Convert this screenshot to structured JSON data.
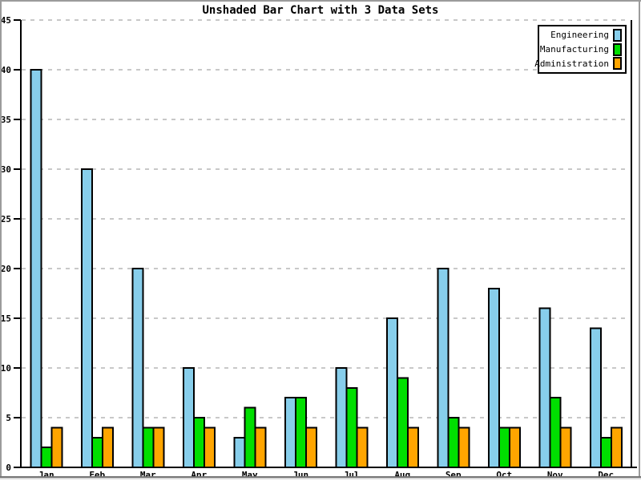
{
  "chart_data": {
    "type": "bar",
    "title": "Unshaded Bar Chart with 3 Data Sets",
    "categories": [
      "Jan",
      "Feb",
      "Mar",
      "Apr",
      "May",
      "Jun",
      "Jul",
      "Aug",
      "Sep",
      "Oct",
      "Nov",
      "Dec"
    ],
    "series": [
      {
        "name": "Engineering",
        "color": "#87CEEB",
        "values": [
          40,
          30,
          20,
          10,
          3,
          7,
          10,
          15,
          20,
          18,
          16,
          14
        ]
      },
      {
        "name": "Manufacturing",
        "color": "#00DF00",
        "values": [
          2,
          3,
          4,
          5,
          6,
          7,
          8,
          9,
          5,
          4,
          7,
          3
        ]
      },
      {
        "name": "Administration",
        "color": "#FFA500",
        "values": [
          4,
          4,
          4,
          4,
          4,
          4,
          4,
          4,
          4,
          4,
          4,
          4
        ]
      }
    ],
    "ylim": [
      0,
      45
    ],
    "yticks": [
      0,
      5,
      10,
      15,
      20,
      25,
      30,
      35,
      40,
      45
    ],
    "xlabel": "",
    "ylabel": "",
    "grid": "horizontal-dashed",
    "grid_color": "#c8c8c8",
    "axis_color": "#000000",
    "bar_outline_color": "#000000",
    "legend_position": "top-right",
    "background_color": "#ffffff"
  }
}
